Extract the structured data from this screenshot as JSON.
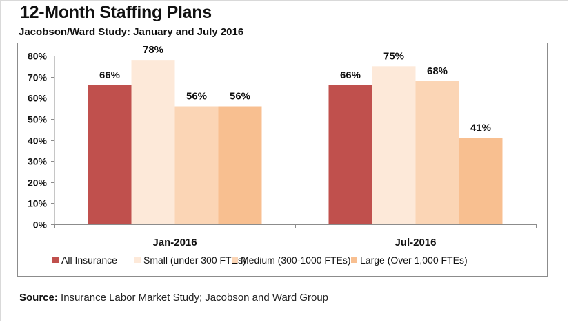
{
  "title": "12-Month Staffing Plans",
  "subtitle": "Jacobson/Ward Study: January and July 2016",
  "source": {
    "label": "Source:",
    "text": "Insurance Labor Market Study; Jacobson and Ward Group"
  },
  "chart_data": {
    "type": "bar",
    "title": "12-Month Staffing Plans",
    "subtitle": "Jacobson/Ward Study: January and July 2016",
    "xlabel": "",
    "ylabel": "",
    "categories": [
      "Jan-2016",
      "Jul-2016"
    ],
    "ylim": [
      0,
      80
    ],
    "yticks": [
      0,
      10,
      20,
      30,
      40,
      50,
      60,
      70,
      80
    ],
    "ytick_labels": [
      "0%",
      "10%",
      "20%",
      "30%",
      "40%",
      "50%",
      "60%",
      "70%",
      "80%"
    ],
    "grid": false,
    "legend_position": "bottom",
    "series": [
      {
        "name": "All Insurance",
        "color": "#c0504d",
        "values": [
          66,
          66
        ],
        "labels": [
          "66%",
          "66%"
        ]
      },
      {
        "name": "Small (under 300 FTEs)",
        "color": "#fde9d9",
        "values": [
          78,
          75
        ],
        "labels": [
          "78%",
          "75%"
        ]
      },
      {
        "name": "Medium (300-1000 FTEs)",
        "color": "#fbd5b5",
        "values": [
          56,
          68
        ],
        "labels": [
          "56%",
          "68%"
        ]
      },
      {
        "name": "Large (Over 1,000 FTEs)",
        "color": "#f8bf90",
        "values": [
          56,
          41
        ],
        "labels": [
          "56%",
          "41%"
        ]
      }
    ]
  }
}
